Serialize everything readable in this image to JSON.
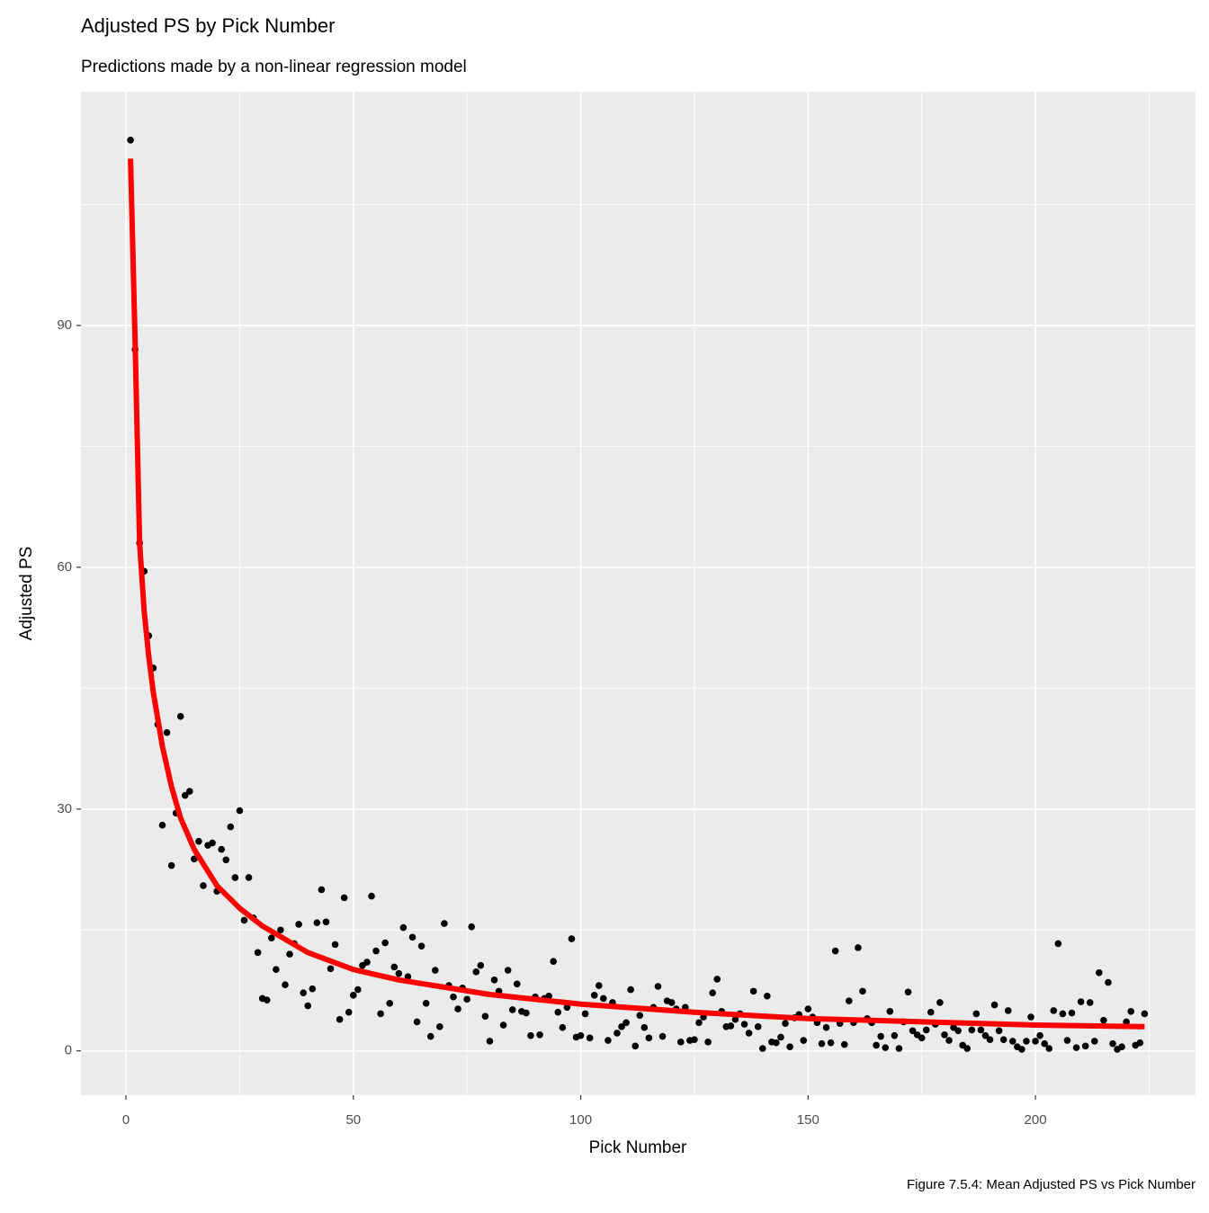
{
  "chart_data": {
    "type": "scatter",
    "title": "Adjusted PS by Pick Number",
    "subtitle": "Predictions made by a non-linear regression model",
    "xlabel": "Pick Number",
    "ylabel": "Adjusted PS",
    "caption": "Figure 7.5.4: Mean Adjusted PS vs Pick Number",
    "xlim": [
      -9.9,
      235.2
    ],
    "ylim": [
      -5.5,
      119
    ],
    "xticks": [
      0,
      50,
      100,
      150,
      200
    ],
    "yticks": [
      0,
      30,
      60,
      90
    ],
    "xminor": [
      25,
      75,
      125,
      175,
      225
    ],
    "yminor": [
      15,
      45,
      75,
      105
    ],
    "grid": true,
    "color": "#000000",
    "x": [
      1,
      2,
      3,
      4,
      5,
      6,
      7,
      8,
      9,
      10,
      11,
      12,
      13,
      14,
      15,
      16,
      17,
      18,
      19,
      20,
      21,
      22,
      23,
      24,
      25,
      26,
      27,
      28,
      29,
      30,
      31,
      32,
      33,
      34,
      35,
      36,
      37,
      38,
      39,
      40,
      41,
      42,
      43,
      44,
      45,
      46,
      47,
      48,
      49,
      50,
      51,
      52,
      53,
      54,
      55,
      56,
      57,
      58,
      59,
      60,
      61,
      62,
      63,
      64,
      65,
      66,
      67,
      68,
      69,
      70,
      71,
      72,
      73,
      74,
      75,
      76,
      77,
      78,
      79,
      80,
      81,
      82,
      83,
      84,
      85,
      86,
      87,
      88,
      89,
      90,
      91,
      92,
      93,
      94,
      95,
      96,
      97,
      98,
      99,
      100,
      101,
      102,
      103,
      104,
      105,
      106,
      107,
      108,
      109,
      110,
      111,
      112,
      113,
      114,
      115,
      116,
      117,
      118,
      119,
      120,
      121,
      122,
      123,
      124,
      125,
      126,
      127,
      128,
      129,
      130,
      131,
      132,
      133,
      134,
      135,
      136,
      137,
      138,
      139,
      140,
      141,
      142,
      143,
      144,
      145,
      146,
      147,
      148,
      149,
      150,
      151,
      152,
      153,
      154,
      155,
      156,
      157,
      158,
      159,
      160,
      161,
      162,
      163,
      164,
      165,
      166,
      167,
      168,
      169,
      170,
      171,
      172,
      173,
      174,
      175,
      176,
      177,
      178,
      179,
      180,
      181,
      182,
      183,
      184,
      185,
      186,
      187,
      188,
      189,
      190,
      191,
      192,
      193,
      194,
      195,
      196,
      197,
      198,
      199,
      200,
      201,
      202,
      203,
      204,
      205,
      206,
      207,
      208,
      209,
      210,
      211,
      212,
      213,
      214,
      215,
      216,
      217,
      218,
      219,
      220,
      221,
      222,
      223,
      224
    ],
    "values": [
      113,
      87,
      63,
      59.5,
      51.5,
      47.5,
      40.5,
      28,
      39.5,
      23,
      29.5,
      41.5,
      31.7,
      32.2,
      23.8,
      26,
      20.5,
      25.5,
      25.8,
      19.8,
      25,
      23.7,
      27.8,
      21.5,
      29.8,
      16.2,
      21.5,
      16.5,
      12.2,
      6.5,
      6.3,
      14,
      10.1,
      15,
      8.2,
      12,
      13.3,
      15.7,
      7.2,
      5.6,
      7.7,
      15.9,
      20,
      16,
      10.2,
      13.2,
      3.9,
      19,
      4.8,
      6.9,
      7.6,
      10.6,
      11,
      19.2,
      12.4,
      4.6,
      13.4,
      5.9,
      10.4,
      9.6,
      15.3,
      9.2,
      14.1,
      3.6,
      13,
      5.9,
      1.8,
      10,
      3,
      15.8,
      8.1,
      6.7,
      5.2,
      7.8,
      6.4,
      15.4,
      9.8,
      10.6,
      4.3,
      1.2,
      8.8,
      7.4,
      3.2,
      10,
      5.1,
      8.3,
      4.9,
      4.7,
      1.9,
      6.7,
      2,
      6.5,
      6.8,
      11.1,
      4.8,
      2.9,
      5.4,
      13.9,
      1.7,
      1.9,
      4.6,
      1.6,
      6.9,
      8.1,
      6.5,
      1.3,
      6,
      2.2,
      3,
      3.5,
      7.6,
      0.6,
      4.4,
      2.9,
      1.6,
      5.4,
      8,
      1.8,
      6.2,
      6,
      5.2,
      1.1,
      5.4,
      1.3,
      1.4,
      3.5,
      4.2,
      1.1,
      7.2,
      8.9,
      4.9,
      3,
      3.1,
      3.9,
      4.6,
      3.3,
      2.2,
      7.4,
      3,
      0.3,
      6.8,
      1.1,
      1,
      1.7,
      3.4,
      0.5,
      4.1,
      4.5,
      1.3,
      5.2,
      4.2,
      3.5,
      0.9,
      2.9,
      1,
      12.4,
      3.4,
      0.8,
      6.2,
      3.5,
      12.8,
      7.4,
      4,
      3.5,
      0.7,
      1.8,
      0.4,
      4.9,
      1.9,
      0.3,
      3.6,
      7.3,
      2.5,
      2,
      1.6,
      2.6,
      4.8,
      3.3,
      6,
      2,
      1.3,
      2.9,
      2.5,
      0.7,
      0.3,
      2.6,
      4.6,
      2.6,
      1.9,
      1.4,
      5.7,
      2.5,
      1.4,
      5,
      1.2,
      0.5,
      0.2,
      1.2,
      4.2,
      1.2,
      1.9,
      0.9,
      0.3,
      5,
      13.3,
      4.6,
      1.3,
      4.7,
      0.4,
      6.1,
      0.6,
      6,
      1.2,
      9.7,
      3.8,
      8.5,
      0.9,
      0.2,
      0.5,
      3.6,
      4.9,
      0.7,
      1,
      4.6
    ],
    "fit": {
      "color": "#ff0000",
      "x": [
        1,
        2,
        3,
        4,
        5,
        6,
        8,
        10,
        12,
        15,
        20,
        25,
        30,
        40,
        50,
        60,
        80,
        100,
        125,
        150,
        175,
        200,
        224
      ],
      "values": [
        110.7,
        88,
        63,
        54.5,
        49,
        44.5,
        37.8,
        32.8,
        28.9,
        25,
        20.5,
        17.7,
        15.5,
        12.2,
        10.1,
        8.8,
        7,
        5.8,
        4.8,
        4,
        3.6,
        3.2,
        3
      ]
    }
  }
}
